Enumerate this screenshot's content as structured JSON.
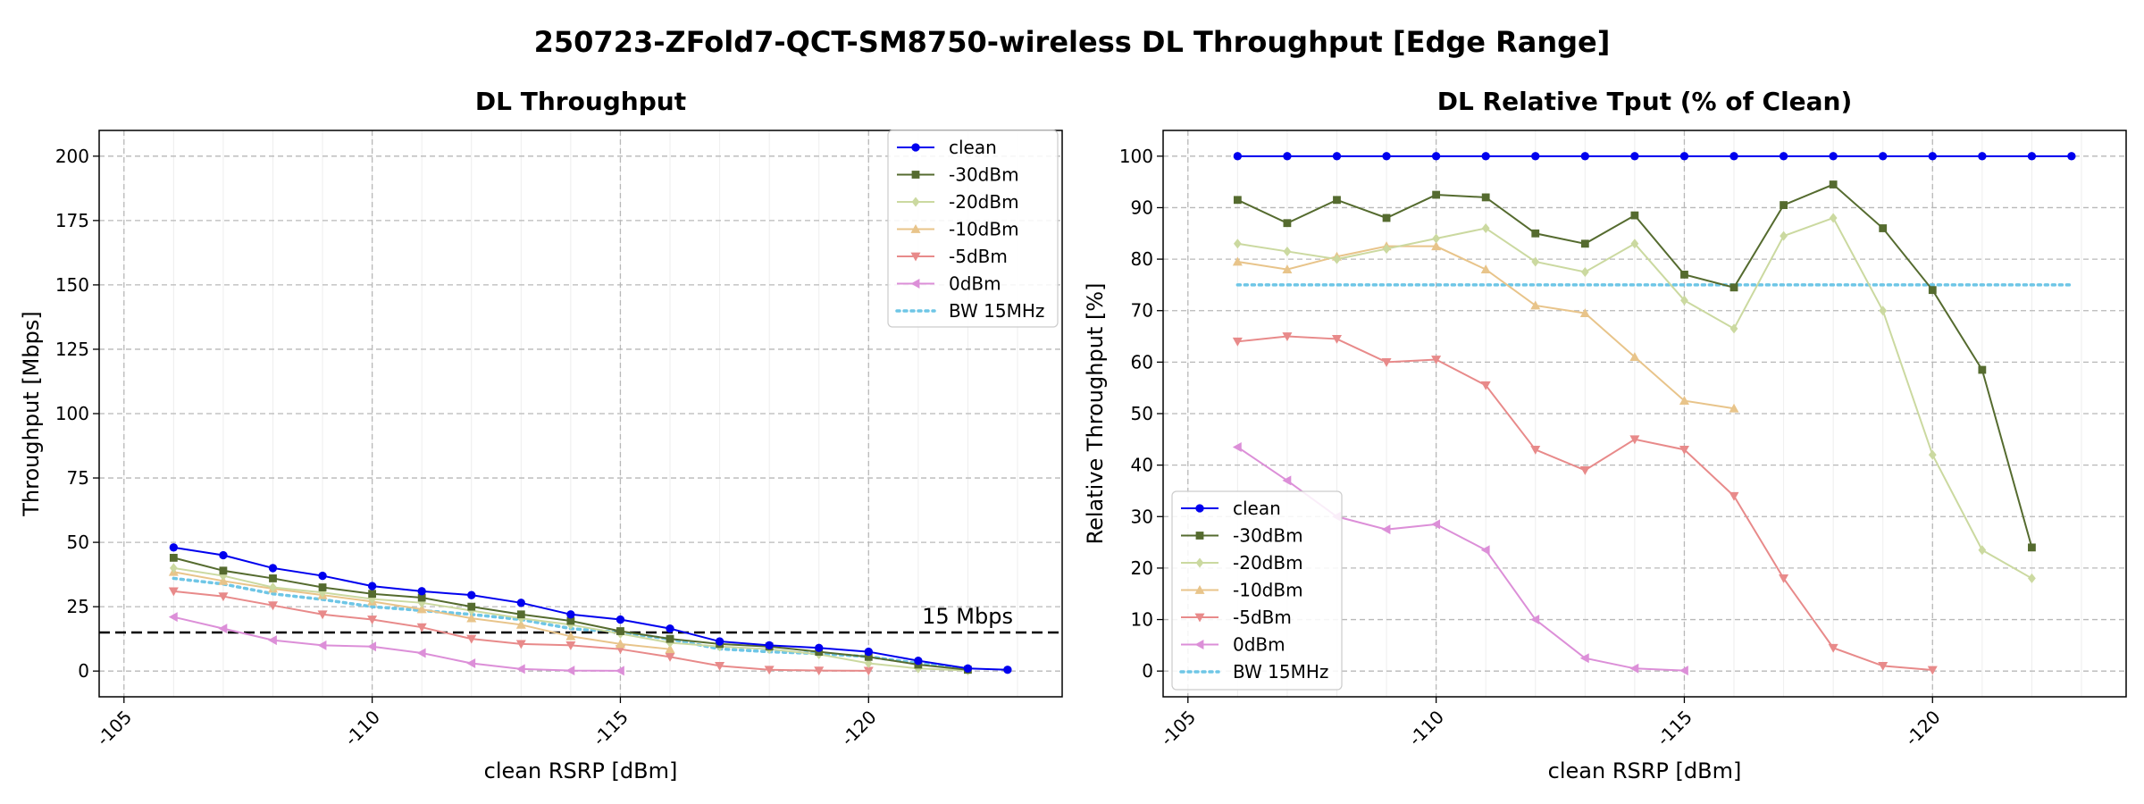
{
  "suptitle": "250723-ZFold7-QCT-SM8750-wireless DL Throughput [Edge Range]",
  "chart_data": [
    {
      "type": "line",
      "title": "DL Throughput",
      "xlabel": "clean RSRP [dBm]",
      "ylabel": "Throughput [Mbps]",
      "xlim": [
        -104.5,
        -123.9
      ],
      "ylim": [
        -10,
        210
      ],
      "xticks": [
        -105,
        -110,
        -115,
        -120
      ],
      "yticks": [
        0,
        25,
        50,
        75,
        100,
        125,
        150,
        175,
        200
      ],
      "grid": true,
      "legend_position": "upper-right",
      "x": [
        -106,
        -107,
        -108,
        -109,
        -110,
        -111,
        -112,
        -113,
        -114,
        -115,
        -116,
        -117,
        -118,
        -119,
        -120,
        -121,
        -122,
        -122.8
      ],
      "series": [
        {
          "name": "clean",
          "color": "#0000ee",
          "marker": "circle",
          "values": [
            48,
            45,
            40,
            37,
            33,
            31,
            29.5,
            26.5,
            22,
            20,
            16.5,
            11.5,
            10,
            9,
            7.5,
            4,
            1,
            0.5
          ]
        },
        {
          "name": "-30dBm",
          "color": "#556b2f",
          "marker": "square",
          "values": [
            44,
            39,
            36,
            32.5,
            30,
            28.5,
            25,
            22,
            19.5,
            15.5,
            12.5,
            10.5,
            9.5,
            7.5,
            5.5,
            2.5,
            0.5,
            null
          ]
        },
        {
          "name": "-20dBm",
          "color": "#cbd9a0",
          "marker": "diamond",
          "values": [
            40,
            37,
            32.5,
            30.5,
            28,
            26.5,
            23.5,
            20.5,
            18,
            14.5,
            11,
            9.5,
            8.5,
            6.5,
            3,
            1,
            0.2,
            null
          ]
        },
        {
          "name": "-10dBm",
          "color": "#e8c48a",
          "marker": "triangle-up",
          "values": [
            38.5,
            35,
            32,
            29.5,
            27,
            24,
            20.5,
            18,
            13.5,
            10.5,
            8.5,
            null,
            null,
            null,
            null,
            null,
            null,
            null
          ]
        },
        {
          "name": "-5dBm",
          "color": "#e88a8a",
          "marker": "triangle-down",
          "values": [
            31,
            29,
            25.5,
            22,
            20,
            17,
            12.5,
            10.5,
            10,
            8.5,
            5.5,
            2,
            0.5,
            0.2,
            0.1,
            null,
            null,
            null
          ]
        },
        {
          "name": "0dBm",
          "color": "#dc8fd8",
          "marker": "triangle-left",
          "values": [
            21,
            16.5,
            12,
            10,
            9.5,
            7,
            3,
            0.8,
            0.2,
            0.1,
            null,
            null,
            null,
            null,
            null,
            null,
            null,
            null
          ]
        }
      ],
      "reference_lines": [
        {
          "name": "BW 15MHz",
          "color": "#6ec6e6",
          "style": "dotted",
          "x": [
            -106,
            -107,
            -108,
            -109,
            -110,
            -111,
            -112,
            -113,
            -114,
            -115,
            -116,
            -117,
            -118,
            -119,
            -120,
            -121,
            -122
          ],
          "values": [
            36,
            33.8,
            30,
            27.8,
            25,
            23.5,
            22,
            20,
            16.5,
            15,
            12.4,
            8.6,
            7.5,
            6.8,
            5.6,
            3,
            0.8
          ]
        },
        {
          "name": "",
          "color": "#000000",
          "style": "dashed",
          "y": 15,
          "annotation": "15 Mbps"
        }
      ]
    },
    {
      "type": "line",
      "title": "DL Relative Tput (% of Clean)",
      "xlabel": "clean RSRP [dBm]",
      "ylabel": "Relative Throughput [%]",
      "xlim": [
        -104.5,
        -123.9
      ],
      "ylim": [
        -5,
        105
      ],
      "xticks": [
        -105,
        -110,
        -115,
        -120
      ],
      "yticks": [
        0,
        10,
        20,
        30,
        40,
        50,
        60,
        70,
        80,
        90,
        100
      ],
      "grid": true,
      "legend_position": "lower-left",
      "x": [
        -106,
        -107,
        -108,
        -109,
        -110,
        -111,
        -112,
        -113,
        -114,
        -115,
        -116,
        -117,
        -118,
        -119,
        -120,
        -121,
        -122,
        -122.8
      ],
      "series": [
        {
          "name": "clean",
          "color": "#0000ee",
          "marker": "circle",
          "values": [
            100,
            100,
            100,
            100,
            100,
            100,
            100,
            100,
            100,
            100,
            100,
            100,
            100,
            100,
            100,
            100,
            100,
            100
          ]
        },
        {
          "name": "-30dBm",
          "color": "#556b2f",
          "marker": "square",
          "values": [
            91.5,
            87,
            91.5,
            88,
            92.5,
            92,
            85,
            83,
            88.5,
            77,
            74.5,
            90.5,
            94.5,
            86,
            74,
            58.5,
            24,
            null
          ]
        },
        {
          "name": "-20dBm",
          "color": "#cbd9a0",
          "marker": "diamond",
          "values": [
            83,
            81.5,
            80,
            82,
            84,
            86,
            79.5,
            77.5,
            83,
            72,
            66.5,
            84.5,
            88,
            70,
            42,
            23.5,
            18,
            null
          ]
        },
        {
          "name": "-10dBm",
          "color": "#e8c48a",
          "marker": "triangle-up",
          "values": [
            79.5,
            78,
            80.5,
            82.5,
            82.5,
            78,
            71,
            69.5,
            61,
            52.5,
            51,
            null,
            null,
            null,
            null,
            null,
            null,
            null
          ]
        },
        {
          "name": "-5dBm",
          "color": "#e88a8a",
          "marker": "triangle-down",
          "values": [
            64,
            65,
            64.5,
            60,
            60.5,
            55.5,
            43,
            39,
            45,
            43,
            34,
            18,
            4.5,
            1,
            0.2,
            null,
            null,
            null
          ]
        },
        {
          "name": "0dBm",
          "color": "#dc8fd8",
          "marker": "triangle-left",
          "values": [
            43.5,
            37,
            30,
            27.5,
            28.5,
            23.5,
            10,
            2.5,
            0.5,
            0.1,
            null,
            null,
            null,
            null,
            null,
            null,
            null,
            null
          ]
        }
      ],
      "reference_lines": [
        {
          "name": "BW 15MHz",
          "color": "#6ec6e6",
          "style": "dotted",
          "y": 75,
          "x_range": [
            -106,
            -122.8
          ]
        }
      ]
    }
  ]
}
